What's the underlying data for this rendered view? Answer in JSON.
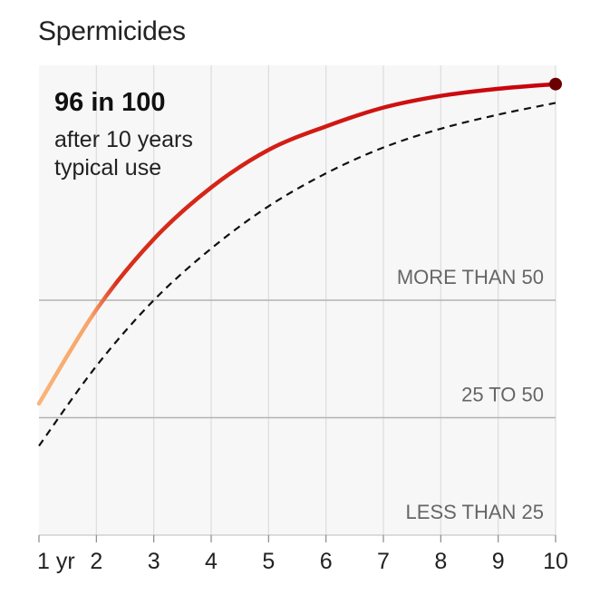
{
  "chart_data": {
    "type": "line",
    "title": "Spermicides",
    "x_tick_labels": [
      "1 yr",
      "2",
      "3",
      "4",
      "5",
      "6",
      "7",
      "8",
      "9",
      "10"
    ],
    "x": [
      1,
      2,
      3,
      4,
      5,
      6,
      7,
      8,
      9,
      10
    ],
    "xlim": [
      1,
      10
    ],
    "ylim": [
      0,
      100
    ],
    "grid": "vertical",
    "bands": [
      {
        "label": "MORE THAN 50",
        "from": 50,
        "to": 100
      },
      {
        "label": "25 TO 50",
        "from": 25,
        "to": 50
      },
      {
        "label": "LESS THAN 25",
        "from": 0,
        "to": 25
      }
    ],
    "series": [
      {
        "style": "solid",
        "color_low": "#f9b57a",
        "color_high": "#c8000a",
        "values": [
          28,
          48,
          63,
          74,
          82,
          87,
          91,
          93.5,
          95,
          96
        ]
      },
      {
        "style": "dashed",
        "color": "#111111",
        "values": [
          19,
          36,
          50,
          61,
          70,
          77,
          82.5,
          86.5,
          89.5,
          92
        ]
      }
    ],
    "annotation": {
      "value": "96 in 100",
      "line1": "after 10 years",
      "line2": "typical use"
    },
    "endpoint_color": "#6b0000"
  }
}
